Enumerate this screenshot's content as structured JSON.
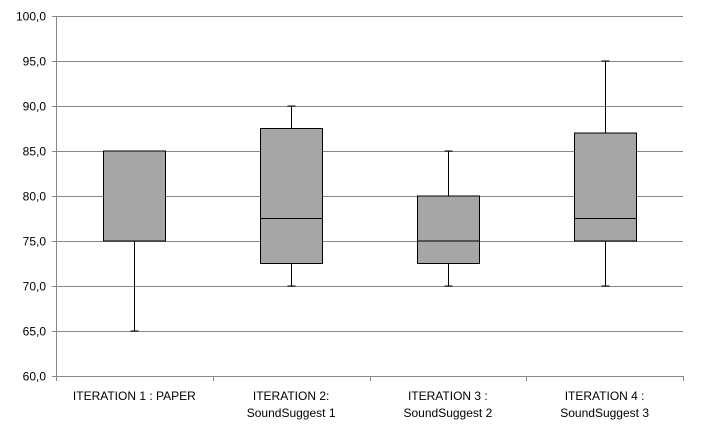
{
  "chart_data": {
    "type": "boxplot",
    "title": "",
    "xlabel": "",
    "ylabel": "",
    "ylim": [
      60,
      100
    ],
    "yticks": [
      "60,0",
      "65,0",
      "70,0",
      "75,0",
      "80,0",
      "85,0",
      "90,0",
      "95,0",
      "100,0"
    ],
    "ytick_values": [
      60,
      65,
      70,
      75,
      80,
      85,
      90,
      95,
      100
    ],
    "grid": true,
    "legend": "none",
    "box_color": "#a6a6a6",
    "categories": [
      {
        "line1": "ITERATION 1 : PAPER",
        "line2": ""
      },
      {
        "line1": "ITERATION 2:",
        "line2": "SoundSuggest 1"
      },
      {
        "line1": "ITERATION 3 :",
        "line2": "SoundSuggest 2"
      },
      {
        "line1": "ITERATION 4 :",
        "line2": "SoundSuggest 3"
      }
    ],
    "boxes": [
      {
        "min": 65,
        "q1": 75,
        "median": 85,
        "q3": 85,
        "max": 85
      },
      {
        "min": 70,
        "q1": 72.5,
        "median": 77.5,
        "q3": 87.5,
        "max": 90
      },
      {
        "min": 70,
        "q1": 72.5,
        "median": 75,
        "q3": 80,
        "max": 85
      },
      {
        "min": 70,
        "q1": 75,
        "median": 77.5,
        "q3": 87,
        "max": 95
      }
    ]
  }
}
